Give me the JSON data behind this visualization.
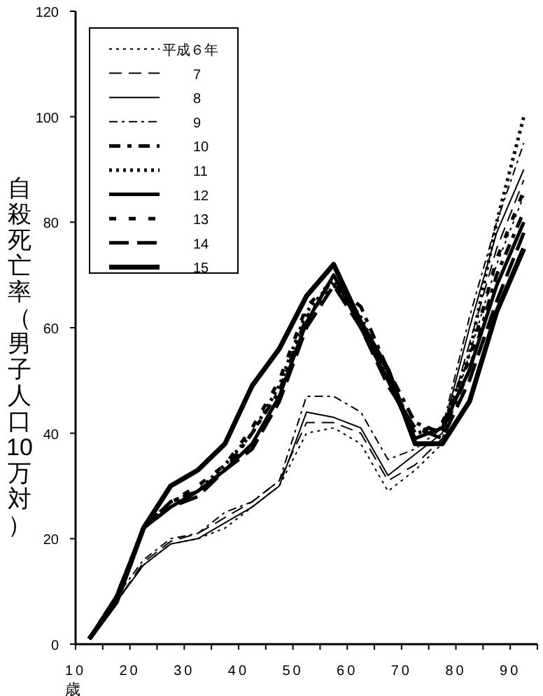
{
  "chart_data": {
    "type": "line",
    "ylabel": "自殺死亡率（男子人口10万対）",
    "xlabel": "歳",
    "x": [
      12.5,
      17.5,
      22.5,
      27.5,
      32.5,
      37.5,
      42.5,
      47.5,
      52.5,
      57.5,
      62.5,
      67.5,
      72.5,
      77.5,
      82.5,
      87.5,
      92.5
    ],
    "xlim": [
      10,
      95
    ],
    "ylim": [
      0,
      120
    ],
    "xticks": [
      10,
      {
        "value": 15,
        "label": null
      },
      20,
      {
        "value": 25,
        "label": null
      },
      30,
      {
        "value": 35,
        "label": null
      },
      40,
      {
        "value": 45,
        "label": null
      },
      50,
      {
        "value": 55,
        "label": null
      },
      60,
      {
        "value": 65,
        "label": null
      },
      70,
      {
        "value": 75,
        "label": null
      },
      80,
      {
        "value": 85,
        "label": null
      },
      90,
      {
        "value": 95,
        "label": null
      }
    ],
    "yticks": [
      0,
      20,
      40,
      60,
      80,
      100,
      120
    ],
    "legend": "top left",
    "grid": false,
    "marker": "none",
    "series": [
      {
        "name": "平成６年",
        "color": "#000000",
        "line_style": "dotted",
        "values": [
          1,
          8,
          15,
          19,
          20,
          22,
          26,
          30,
          40,
          41,
          38,
          29,
          33,
          38,
          55,
          72,
          85
        ]
      },
      {
        "name": "7",
        "color": "#000000",
        "line_style": "dashed",
        "values": [
          1,
          8,
          15.5,
          19.5,
          21,
          24,
          27,
          31,
          42,
          42,
          40,
          31,
          34,
          39,
          57,
          75,
          88
        ]
      },
      {
        "name": "8",
        "color": "#000000",
        "line_style": "solid",
        "values": [
          1,
          8,
          15,
          19,
          20,
          23,
          26,
          30,
          44,
          43,
          41,
          32,
          36,
          40,
          60,
          78,
          90
        ]
      },
      {
        "name": "9",
        "color": "#000000",
        "line_style": "dashed",
        "values": [
          1,
          9,
          16,
          20,
          21,
          25,
          27,
          31,
          47,
          47,
          44,
          35,
          37,
          41,
          62,
          80,
          95
        ]
      },
      {
        "name": "10",
        "color": "#000000",
        "line_style": "dashed",
        "values": [
          1,
          9,
          22,
          27,
          29,
          33,
          40,
          48,
          62,
          68,
          64,
          52,
          42,
          40,
          52,
          70,
          82
        ]
      },
      {
        "name": "11",
        "color": "#000000",
        "line_style": "dotted",
        "values": [
          1,
          9,
          22,
          27,
          29,
          34,
          40,
          49,
          63,
          69,
          62,
          51,
          40,
          41,
          55,
          80,
          100
        ]
      },
      {
        "name": "12",
        "color": "#000000",
        "line_style": "solid",
        "values": [
          1,
          9,
          22,
          26,
          29,
          33,
          38,
          47,
          61,
          70,
          60,
          50,
          39,
          41,
          52,
          68,
          80
        ]
      },
      {
        "name": "13",
        "color": "#000000",
        "line_style": "dashed",
        "values": [
          1,
          9,
          22,
          27,
          30,
          34,
          41,
          50,
          64,
          69,
          61,
          50,
          40,
          42,
          54,
          73,
          86
        ]
      },
      {
        "name": "14",
        "color": "#000000",
        "line_style": "dashed",
        "values": [
          1,
          8,
          22,
          26,
          28,
          33,
          37,
          46,
          60,
          68,
          60,
          49,
          41,
          39,
          50,
          65,
          78
        ]
      },
      {
        "name": "15",
        "color": "#000000",
        "line_style": "solid",
        "values": [
          1,
          8,
          22,
          30,
          33,
          38,
          49,
          56,
          66,
          72,
          61,
          52,
          38,
          38,
          46,
          63,
          75
        ]
      }
    ]
  }
}
